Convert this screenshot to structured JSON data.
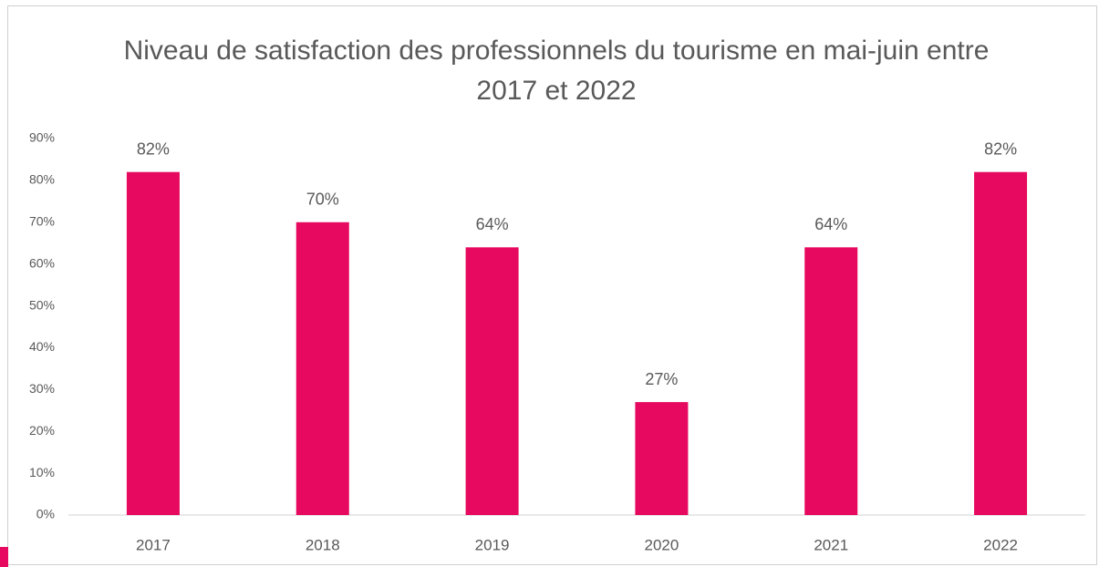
{
  "chart_data": {
    "type": "bar",
    "title": "Niveau de satisfaction des professionnels du tourisme en mai-juin entre 2017 et 2022",
    "categories": [
      "2017",
      "2018",
      "2019",
      "2020",
      "2021",
      "2022"
    ],
    "values": [
      82,
      70,
      64,
      27,
      64,
      82
    ],
    "value_labels": [
      "82%",
      "70%",
      "64%",
      "27%",
      "64%",
      "82%"
    ],
    "color": "#e6095f",
    "ylim": [
      0,
      90
    ],
    "yticks": [
      {
        "value": 0,
        "label": "0%"
      },
      {
        "value": 10,
        "label": "10%"
      },
      {
        "value": 20,
        "label": "20%"
      },
      {
        "value": 30,
        "label": "30%"
      },
      {
        "value": 40,
        "label": "40%"
      },
      {
        "value": 50,
        "label": "50%"
      },
      {
        "value": 60,
        "label": "60%"
      },
      {
        "value": 70,
        "label": "70%"
      },
      {
        "value": 80,
        "label": "80%"
      },
      {
        "value": 90,
        "label": "90%"
      }
    ],
    "grid": false
  }
}
